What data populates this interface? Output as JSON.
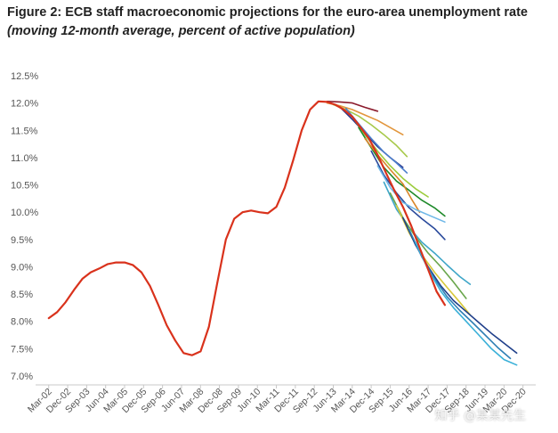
{
  "header": {
    "title": "Figure 2: ECB staff macroeconomic projections for the euro-area unemployment rate",
    "subtitle": "(moving 12-month average, percent of active population)"
  },
  "watermark": "知乎 @某某先生",
  "chart_data": {
    "type": "line",
    "title": "Figure 2: ECB staff macroeconomic projections for the euro-area unemployment rate",
    "subtitle": "(moving 12-month average, percent of active population)",
    "xlabel": "",
    "ylabel": "",
    "ylim": [
      7.0,
      12.5
    ],
    "yticks": [
      7.0,
      7.5,
      8.0,
      8.5,
      9.0,
      9.5,
      10.0,
      10.5,
      11.0,
      11.5,
      12.0,
      12.5
    ],
    "ytick_labels": [
      "7.0%",
      "7.5%",
      "8.0%",
      "8.5%",
      "9.0%",
      "9.5%",
      "10.0%",
      "10.5%",
      "11.0%",
      "11.5%",
      "12.0%",
      "12.5%"
    ],
    "xlim": [
      2002.0,
      2021.0
    ],
    "xticks": [
      {
        "label": "Mar-02",
        "x": 2002.167
      },
      {
        "label": "Dec-02",
        "x": 2002.917
      },
      {
        "label": "Sep-03",
        "x": 2003.667
      },
      {
        "label": "Jun-04",
        "x": 2004.417
      },
      {
        "label": "Mar-05",
        "x": 2005.167
      },
      {
        "label": "Dec-05",
        "x": 2005.917
      },
      {
        "label": "Sep-06",
        "x": 2006.667
      },
      {
        "label": "Jun-07",
        "x": 2007.417
      },
      {
        "label": "Mar-08",
        "x": 2008.167
      },
      {
        "label": "Dec-08",
        "x": 2008.917
      },
      {
        "label": "Sep-09",
        "x": 2009.667
      },
      {
        "label": "Jun-10",
        "x": 2010.417
      },
      {
        "label": "Mar-11",
        "x": 2011.167
      },
      {
        "label": "Dec-11",
        "x": 2011.917
      },
      {
        "label": "Sep-12",
        "x": 2012.667
      },
      {
        "label": "Jun-13",
        "x": 2013.417
      },
      {
        "label": "Mar-14",
        "x": 2014.167
      },
      {
        "label": "Dec-14",
        "x": 2014.917
      },
      {
        "label": "Sep-15",
        "x": 2015.667
      },
      {
        "label": "Jun-16",
        "x": 2016.417
      },
      {
        "label": "Mar-17",
        "x": 2017.167
      },
      {
        "label": "Dec-17",
        "x": 2017.917
      },
      {
        "label": "Sep-18",
        "x": 2018.667
      },
      {
        "label": "Jun-19",
        "x": 2019.417
      },
      {
        "label": "Mar-20",
        "x": 2020.167
      },
      {
        "label": "Dec-20",
        "x": 2020.917
      }
    ],
    "grid": false,
    "legend": "none",
    "series": [
      {
        "role": "actual",
        "color": "#d9321c",
        "width": 2.2,
        "points": [
          [
            2002.17,
            8.06
          ],
          [
            2002.5,
            8.17
          ],
          [
            2002.83,
            8.35
          ],
          [
            2003.17,
            8.58
          ],
          [
            2003.5,
            8.78
          ],
          [
            2003.83,
            8.9
          ],
          [
            2004.17,
            8.97
          ],
          [
            2004.5,
            9.05
          ],
          [
            2004.83,
            9.08
          ],
          [
            2005.17,
            9.08
          ],
          [
            2005.5,
            9.03
          ],
          [
            2005.83,
            8.9
          ],
          [
            2006.17,
            8.65
          ],
          [
            2006.5,
            8.3
          ],
          [
            2006.83,
            7.93
          ],
          [
            2007.17,
            7.65
          ],
          [
            2007.5,
            7.42
          ],
          [
            2007.83,
            7.38
          ],
          [
            2008.17,
            7.45
          ],
          [
            2008.5,
            7.9
          ],
          [
            2008.83,
            8.7
          ],
          [
            2009.17,
            9.5
          ],
          [
            2009.5,
            9.88
          ],
          [
            2009.83,
            10.0
          ],
          [
            2010.17,
            10.03
          ],
          [
            2010.5,
            10.0
          ],
          [
            2010.83,
            9.98
          ],
          [
            2011.17,
            10.1
          ],
          [
            2011.5,
            10.45
          ],
          [
            2011.83,
            10.95
          ],
          [
            2012.17,
            11.5
          ],
          [
            2012.5,
            11.88
          ],
          [
            2012.83,
            12.03
          ],
          [
            2013.17,
            12.02
          ],
          [
            2013.5,
            11.97
          ],
          [
            2013.83,
            11.88
          ],
          [
            2014.17,
            11.75
          ],
          [
            2014.5,
            11.55
          ],
          [
            2014.83,
            11.35
          ],
          [
            2015.17,
            11.05
          ],
          [
            2015.5,
            10.72
          ],
          [
            2015.83,
            10.4
          ],
          [
            2016.17,
            10.1
          ],
          [
            2016.5,
            9.75
          ],
          [
            2016.83,
            9.35
          ],
          [
            2017.17,
            8.95
          ],
          [
            2017.5,
            8.55
          ],
          [
            2017.83,
            8.3
          ]
        ]
      },
      {
        "role": "projection",
        "color": "#8b1a2b",
        "width": 1.6,
        "points": [
          [
            2013.17,
            12.03
          ],
          [
            2013.67,
            12.02
          ],
          [
            2014.17,
            12.0
          ],
          [
            2014.67,
            11.92
          ],
          [
            2015.17,
            11.85
          ]
        ]
      },
      {
        "role": "projection",
        "color": "#e2963c",
        "width": 1.6,
        "points": [
          [
            2013.17,
            12.0
          ],
          [
            2013.67,
            11.95
          ],
          [
            2014.17,
            11.88
          ],
          [
            2014.67,
            11.78
          ],
          [
            2015.17,
            11.68
          ],
          [
            2015.67,
            11.55
          ],
          [
            2016.17,
            11.42
          ]
        ]
      },
      {
        "role": "projection",
        "color": "#a7c94a",
        "width": 1.6,
        "points": [
          [
            2013.42,
            11.97
          ],
          [
            2013.92,
            11.88
          ],
          [
            2014.42,
            11.76
          ],
          [
            2014.92,
            11.6
          ],
          [
            2015.42,
            11.42
          ],
          [
            2015.92,
            11.22
          ],
          [
            2016.33,
            11.02
          ]
        ]
      },
      {
        "role": "projection",
        "color": "#2d3a8c",
        "width": 1.6,
        "points": [
          [
            2013.67,
            11.93
          ],
          [
            2014.17,
            11.7
          ],
          [
            2014.67,
            11.45
          ],
          [
            2015.17,
            11.2
          ],
          [
            2015.67,
            11.0
          ],
          [
            2016.17,
            10.82
          ]
        ]
      },
      {
        "role": "projection",
        "color": "#4c7fcc",
        "width": 1.6,
        "points": [
          [
            2013.92,
            11.9
          ],
          [
            2014.42,
            11.62
          ],
          [
            2014.92,
            11.35
          ],
          [
            2015.42,
            11.1
          ],
          [
            2015.92,
            10.9
          ],
          [
            2016.33,
            10.72
          ]
        ]
      },
      {
        "role": "projection",
        "color": "#9ccc3c",
        "width": 1.6,
        "points": [
          [
            2014.17,
            11.75
          ],
          [
            2014.67,
            11.42
          ],
          [
            2015.17,
            11.12
          ],
          [
            2015.67,
            10.85
          ],
          [
            2016.17,
            10.62
          ],
          [
            2016.67,
            10.43
          ],
          [
            2017.17,
            10.28
          ]
        ]
      },
      {
        "role": "projection",
        "color": "#1f8a2a",
        "width": 1.6,
        "points": [
          [
            2014.42,
            11.55
          ],
          [
            2014.92,
            11.18
          ],
          [
            2015.42,
            10.82
          ],
          [
            2015.92,
            10.57
          ],
          [
            2016.42,
            10.4
          ],
          [
            2016.92,
            10.22
          ],
          [
            2017.42,
            10.08
          ],
          [
            2017.83,
            9.93
          ]
        ]
      },
      {
        "role": "projection",
        "color": "#d9862a",
        "width": 1.6,
        "points": [
          [
            2014.67,
            11.35
          ],
          [
            2015.17,
            11.05
          ],
          [
            2015.67,
            10.78
          ],
          [
            2016.17,
            10.52
          ],
          [
            2016.5,
            10.25
          ],
          [
            2016.83,
            10.0
          ]
        ]
      },
      {
        "role": "projection",
        "color": "#2a4a9c",
        "width": 1.6,
        "points": [
          [
            2014.92,
            11.12
          ],
          [
            2015.42,
            10.68
          ],
          [
            2015.92,
            10.35
          ],
          [
            2016.42,
            10.08
          ],
          [
            2016.92,
            9.88
          ],
          [
            2017.42,
            9.7
          ],
          [
            2017.83,
            9.5
          ]
        ]
      },
      {
        "role": "projection",
        "color": "#6fb8e8",
        "width": 1.6,
        "points": [
          [
            2015.17,
            10.85
          ],
          [
            2015.67,
            10.45
          ],
          [
            2016.17,
            10.18
          ],
          [
            2016.67,
            10.05
          ],
          [
            2017.17,
            9.95
          ],
          [
            2017.83,
            9.82
          ]
        ]
      },
      {
        "role": "projection",
        "color": "#3fa6c8",
        "width": 1.6,
        "points": [
          [
            2015.42,
            10.55
          ],
          [
            2015.92,
            10.05
          ],
          [
            2016.42,
            9.72
          ],
          [
            2016.92,
            9.45
          ],
          [
            2017.42,
            9.25
          ],
          [
            2017.92,
            9.03
          ],
          [
            2018.42,
            8.82
          ],
          [
            2018.83,
            8.68
          ]
        ]
      },
      {
        "role": "projection",
        "color": "#6aa64c",
        "width": 1.6,
        "points": [
          [
            2015.67,
            10.35
          ],
          [
            2016.17,
            9.9
          ],
          [
            2016.67,
            9.55
          ],
          [
            2017.17,
            9.25
          ],
          [
            2017.67,
            9.0
          ],
          [
            2018.17,
            8.72
          ],
          [
            2018.67,
            8.42
          ]
        ]
      },
      {
        "role": "projection",
        "color": "#d6c83a",
        "width": 1.6,
        "points": [
          [
            2015.92,
            10.12
          ],
          [
            2016.42,
            9.62
          ],
          [
            2016.92,
            9.22
          ],
          [
            2017.42,
            8.9
          ],
          [
            2017.92,
            8.62
          ],
          [
            2018.42,
            8.35
          ],
          [
            2018.83,
            8.12
          ]
        ]
      },
      {
        "role": "projection",
        "color": "#1f3f8a",
        "width": 1.6,
        "points": [
          [
            2016.17,
            9.9
          ],
          [
            2016.67,
            9.4
          ],
          [
            2017.17,
            9.0
          ],
          [
            2017.67,
            8.65
          ],
          [
            2018.17,
            8.38
          ],
          [
            2018.67,
            8.18
          ],
          [
            2019.17,
            7.98
          ],
          [
            2019.67,
            7.78
          ],
          [
            2020.17,
            7.6
          ],
          [
            2020.67,
            7.42
          ]
        ]
      },
      {
        "role": "projection",
        "color": "#2f7fb4",
        "width": 1.6,
        "points": [
          [
            2016.42,
            9.68
          ],
          [
            2016.92,
            9.18
          ],
          [
            2017.42,
            8.78
          ],
          [
            2017.92,
            8.45
          ],
          [
            2018.42,
            8.2
          ],
          [
            2018.92,
            7.98
          ],
          [
            2019.42,
            7.75
          ],
          [
            2019.92,
            7.52
          ],
          [
            2020.42,
            7.32
          ]
        ]
      },
      {
        "role": "projection",
        "color": "#3ab0d8",
        "width": 1.6,
        "points": [
          [
            2016.67,
            9.45
          ],
          [
            2017.17,
            8.95
          ],
          [
            2017.67,
            8.55
          ],
          [
            2018.17,
            8.25
          ],
          [
            2018.67,
            8.0
          ],
          [
            2019.17,
            7.75
          ],
          [
            2019.67,
            7.5
          ],
          [
            2020.17,
            7.3
          ],
          [
            2020.67,
            7.2
          ]
        ]
      }
    ]
  }
}
